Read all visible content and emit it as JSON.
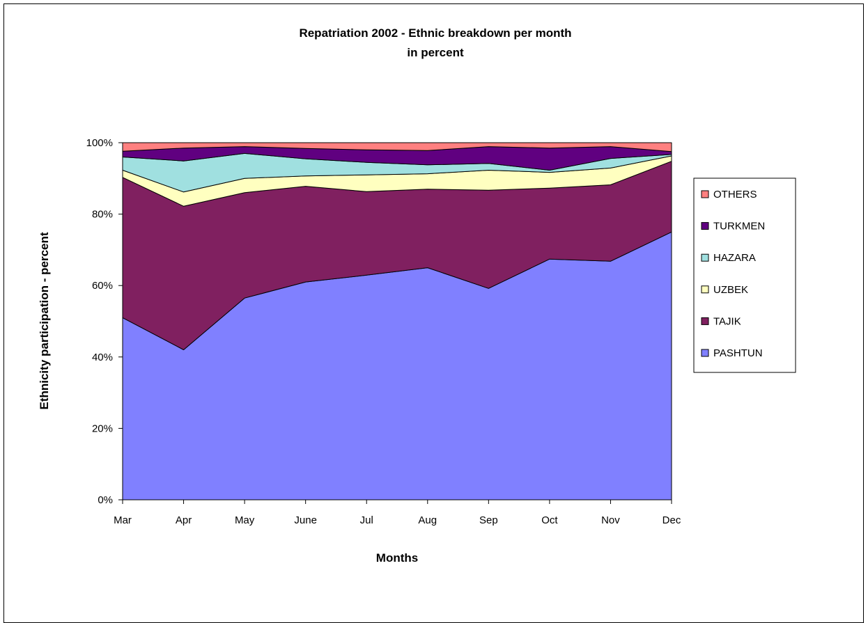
{
  "chart_data": {
    "type": "area",
    "stacked": true,
    "title": "Repatriation 2002 - Ethnic breakdown per month",
    "subtitle": "in percent",
    "xlabel": "Months",
    "ylabel": "Ethnicity participation - percent",
    "categories": [
      "Mar",
      "Apr",
      "May",
      "June",
      "Jul",
      "Aug",
      "Sep",
      "Oct",
      "Nov",
      "Dec"
    ],
    "ylim": [
      0,
      100
    ],
    "yticks": [
      "0%",
      "20%",
      "40%",
      "60%",
      "80%",
      "100%"
    ],
    "ytick_values": [
      0,
      20,
      40,
      60,
      80,
      100
    ],
    "grid": false,
    "legend_position": "right",
    "series": [
      {
        "name": "PASHTUN",
        "color": "#8080ff",
        "values": [
          51.0,
          42.0,
          56.5,
          61.0,
          62.9,
          65.0,
          59.2,
          67.4,
          66.8,
          75.0
        ]
      },
      {
        "name": "TAJIK",
        "color": "#802060",
        "values": [
          39.3,
          40.2,
          29.5,
          26.8,
          23.4,
          22.0,
          27.5,
          19.9,
          21.4,
          19.8
        ]
      },
      {
        "name": "UZBEK",
        "color": "#ffffc0",
        "values": [
          2.0,
          4.0,
          4.0,
          2.9,
          4.7,
          4.3,
          5.6,
          4.4,
          4.7,
          1.5
        ]
      },
      {
        "name": "HAZARA",
        "color": "#a0e0e0",
        "values": [
          3.7,
          8.7,
          7.0,
          4.8,
          3.5,
          2.5,
          1.9,
          0.6,
          2.7,
          0.4
        ]
      },
      {
        "name": "TURKMEN",
        "color": "#600080",
        "values": [
          1.6,
          3.6,
          1.9,
          2.9,
          3.5,
          4.0,
          4.7,
          6.2,
          3.3,
          0.8
        ]
      },
      {
        "name": "OTHERS",
        "color": "#ff8080",
        "values": [
          2.4,
          1.5,
          1.1,
          1.6,
          2.0,
          2.2,
          1.1,
          1.5,
          1.1,
          2.5
        ]
      }
    ]
  }
}
